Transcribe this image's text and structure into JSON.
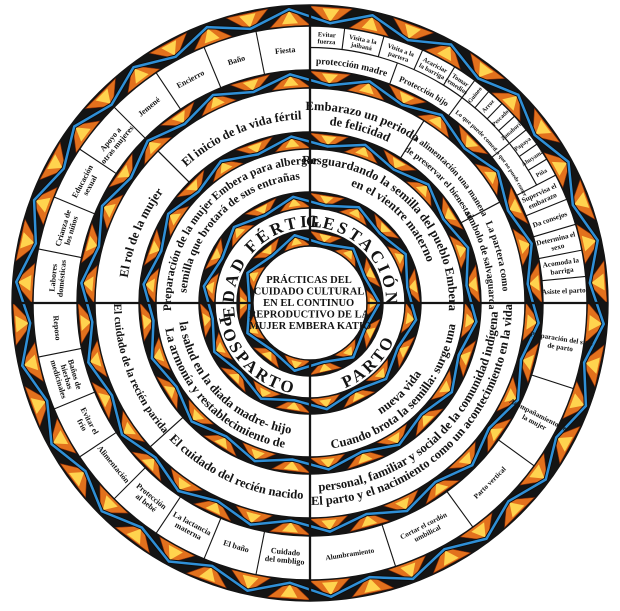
{
  "center": {
    "lines": [
      "PRÁCTICAS DEL",
      "CUIDADO CULTURAL",
      "EN EL CONTINUO",
      "REPRODUCTIVO DE LA",
      "MUJER EMBERA KATIO"
    ]
  },
  "colors": {
    "background": "#ffffff",
    "ink": "#141414",
    "band_black": "#141414",
    "triangle_orange": "#E2711D",
    "triangle_edge": "#8a2a06",
    "triangle_yellow": "#FFD34E",
    "zigzag_blue": "#2F8FD6"
  },
  "quadrants": [
    {
      "id": "gestacion",
      "name": "GESTACIÓN",
      "start": 0,
      "end": 90,
      "theme_lines": [
        "Resguardando la semilla del pueblo Embera",
        "en el vientre materno"
      ],
      "middle_segments": [
        {
          "lines": [
            "Embarazo un periodo",
            "de felicidad"
          ],
          "start": 0,
          "end": 32
        },
        {
          "lines": [
            "La alimentación una manera",
            "de preservar el bienestar"
          ],
          "start": 32,
          "end": 62
        },
        {
          "lines": [
            "La partera como",
            "símbolo de salvaguarda"
          ],
          "start": 62,
          "end": 90
        }
      ],
      "outer_segments": [
        {
          "lines": [
            "Evitar",
            "fuerza"
          ],
          "start": 0,
          "end": 7.2,
          "row": "outer"
        },
        {
          "lines": [
            "Visita a la",
            "jaibaná"
          ],
          "start": 7.2,
          "end": 15.5,
          "row": "outer"
        },
        {
          "lines": [
            "Visita a la",
            "partera"
          ],
          "start": 15.5,
          "end": 24,
          "row": "outer"
        },
        {
          "lines": [
            "Acariciar",
            "la barriga"
          ],
          "start": 24,
          "end": 31.5,
          "row": "outer"
        },
        {
          "lines": [
            "Tomar",
            "remedios"
          ],
          "start": 31.5,
          "end": 36.5,
          "row": "outer"
        },
        {
          "lines": [
            "Guineo"
          ],
          "start": 36.5,
          "end": 40.2,
          "row": "outer"
        },
        {
          "lines": [
            "Arroz"
          ],
          "start": 40.2,
          "end": 43.9,
          "row": "outer"
        },
        {
          "lines": [
            "Pescado"
          ],
          "start": 43.9,
          "end": 47.6,
          "row": "outer"
        },
        {
          "lines": [
            "Zanahoria"
          ],
          "start": 47.6,
          "end": 51.3,
          "row": "outer"
        },
        {
          "lines": [
            "Papaya"
          ],
          "start": 51.3,
          "end": 55.0,
          "row": "outer"
        },
        {
          "lines": [
            "Ahuyama"
          ],
          "start": 55.0,
          "end": 58.7,
          "row": "outer"
        },
        {
          "lines": [
            "Piña"
          ],
          "start": 58.7,
          "end": 62.5,
          "row": "outer"
        },
        {
          "lines": [
            "Supervisa el",
            "embarazo"
          ],
          "start": 62.5,
          "end": 68,
          "row": "full"
        },
        {
          "lines": [
            "Da consejos"
          ],
          "start": 68,
          "end": 73.5,
          "row": "full"
        },
        {
          "lines": [
            "Determina el",
            "sexo"
          ],
          "start": 73.5,
          "end": 79,
          "row": "full"
        },
        {
          "lines": [
            "Acomoda la",
            "barriga"
          ],
          "start": 79,
          "end": 84.5,
          "row": "full"
        },
        {
          "lines": [
            "Asiste el parto"
          ],
          "start": 84.5,
          "end": 90,
          "row": "full"
        }
      ],
      "category_arcs": [
        {
          "label": "protección madre",
          "start": 0,
          "end": 20
        },
        {
          "label": "Protección hijo",
          "start": 20,
          "end": 36.5
        },
        {
          "label": "Lo que puede comer",
          "start": 36.5,
          "end": 51.3
        },
        {
          "label": "Lo que no puede comer",
          "start": 51.3,
          "end": 62.5
        }
      ]
    },
    {
      "id": "parto",
      "name": "PARTO",
      "start": 90,
      "end": 180,
      "theme_lines": [
        "Cuando brota la semilla: surge una",
        "nueva vida"
      ],
      "middle_segments": [
        {
          "lines": [
            "El parto y el nacimiento como un acontecimiento en la vida",
            "personal, familiar y social de la comunidad indígena"
          ],
          "start": 90,
          "end": 180
        }
      ],
      "outer_segments": [
        {
          "lines": [
            "Preparación del sitio",
            "de parto"
          ],
          "start": 90,
          "end": 108,
          "row": "full"
        },
        {
          "lines": [
            "Acompañamiento de",
            "la mujer"
          ],
          "start": 108,
          "end": 126,
          "row": "full"
        },
        {
          "lines": [
            "Parto vertical"
          ],
          "start": 126,
          "end": 144,
          "row": "full"
        },
        {
          "lines": [
            "Cortar el cordón",
            "umbilical"
          ],
          "start": 144,
          "end": 162,
          "row": "full"
        },
        {
          "lines": [
            "Alumbramiento"
          ],
          "start": 162,
          "end": 180,
          "row": "full"
        }
      ],
      "category_arcs": []
    },
    {
      "id": "posparto",
      "name": "POSPARTO",
      "start": 180,
      "end": 270,
      "theme_lines": [
        "La armonía y restablecimiento de",
        "la salud en la diada madre- hijo"
      ],
      "middle_segments": [
        {
          "lines": [
            "El cuidado del recién nacido"
          ],
          "start": 180,
          "end": 228
        },
        {
          "lines": [
            "El cuidado de la recién parida"
          ],
          "start": 228,
          "end": 270
        }
      ],
      "outer_segments": [
        {
          "lines": [
            "Cuidado",
            "del ombligo"
          ],
          "start": 180,
          "end": 191.25,
          "row": "full"
        },
        {
          "lines": [
            "El baño"
          ],
          "start": 191.25,
          "end": 202.5,
          "row": "full"
        },
        {
          "lines": [
            "La lactancia",
            "materna"
          ],
          "start": 202.5,
          "end": 213.75,
          "row": "full"
        },
        {
          "lines": [
            "Protección",
            "al bebé"
          ],
          "start": 213.75,
          "end": 225,
          "row": "full"
        },
        {
          "lines": [
            "Alimentación"
          ],
          "start": 225,
          "end": 236.25,
          "row": "full"
        },
        {
          "lines": [
            "Evitar el",
            "frío"
          ],
          "start": 236.25,
          "end": 247.5,
          "row": "full"
        },
        {
          "lines": [
            "Baños de",
            "hierbas",
            "medicinales"
          ],
          "start": 247.5,
          "end": 258.75,
          "row": "full"
        },
        {
          "lines": [
            "Reposo"
          ],
          "start": 258.75,
          "end": 270,
          "row": "full"
        }
      ],
      "category_arcs": []
    },
    {
      "id": "edad-fertil",
      "name": "EDAD FÉRTIL",
      "start": 270,
      "end": 360,
      "theme_lines": [
        "Preparación de la mujer Embera para albergar",
        "semilla que brotará de sus entrañas"
      ],
      "middle_segments": [
        {
          "lines": [
            "El rol de la mujer"
          ],
          "start": 270,
          "end": 315
        },
        {
          "lines": [
            "El inicio de la vida fértil"
          ],
          "start": 315,
          "end": 360
        }
      ],
      "outer_segments": [
        {
          "lines": [
            "Labores",
            "domésticas"
          ],
          "start": 270,
          "end": 281.25,
          "row": "full"
        },
        {
          "lines": [
            "Crianza de",
            "los niños"
          ],
          "start": 281.25,
          "end": 292.5,
          "row": "full"
        },
        {
          "lines": [
            "Educación",
            "sexual"
          ],
          "start": 292.5,
          "end": 303.75,
          "row": "full"
        },
        {
          "lines": [
            "Apoyo a",
            "otras mujeres"
          ],
          "start": 303.75,
          "end": 315,
          "row": "full"
        },
        {
          "lines": [
            "Jemené"
          ],
          "start": 315,
          "end": 326.25,
          "row": "full"
        },
        {
          "lines": [
            "Encierro"
          ],
          "start": 326.25,
          "end": 337.5,
          "row": "full"
        },
        {
          "lines": [
            "Baño"
          ],
          "start": 337.5,
          "end": 348.75,
          "row": "full"
        },
        {
          "lines": [
            "Fiesta"
          ],
          "start": 348.75,
          "end": 360,
          "row": "full"
        }
      ],
      "category_arcs": []
    }
  ]
}
